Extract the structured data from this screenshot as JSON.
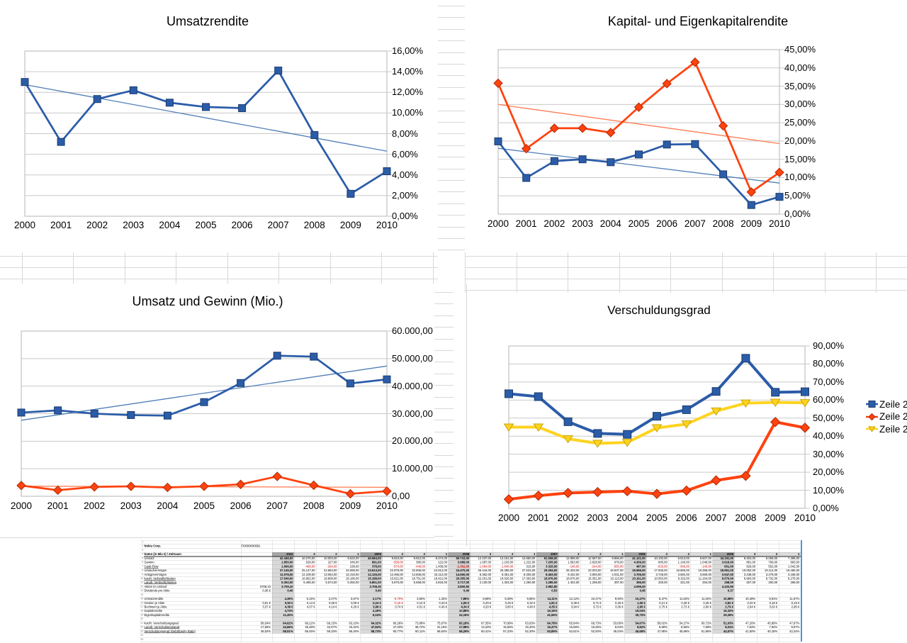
{
  "years": [
    "2000",
    "2001",
    "2002",
    "2003",
    "2004",
    "2005",
    "2006",
    "2007",
    "2008",
    "2009",
    "2010"
  ],
  "chart_data": [
    {
      "type": "line",
      "title": "Umsatzrendite",
      "xlabel": "",
      "ylabel": "",
      "ylim": [
        0,
        16
      ],
      "grid": true,
      "y_ticks": [
        "16,00%",
        "14,00%",
        "12,00%",
        "10,00%",
        "8,00%",
        "6,00%",
        "4,00%",
        "2,00%",
        "0,00%"
      ],
      "series": [
        {
          "name": "Umsatzrendite",
          "values": [
            13.0,
            7.2,
            11.35,
            12.2,
            11.0,
            10.58,
            10.47,
            14.11,
            7.86,
            2.17,
            4.36
          ],
          "trend": {
            "from": 12.75,
            "to": 6.3
          }
        }
      ]
    },
    {
      "type": "line",
      "title": "Kapital- und Eigenkapitalrendite",
      "xlabel": "",
      "ylabel": "",
      "ylim": [
        0,
        45
      ],
      "grid": true,
      "y_ticks": [
        "45,00%",
        "40,00%",
        "35,00%",
        "30,00%",
        "25,00%",
        "20,00%",
        "15,00%",
        "10,00%",
        "5,00%",
        "0,00%"
      ],
      "series": [
        {
          "name": "Eigenkapitalrendite",
          "values": [
            35.8,
            17.9,
            23.5,
            23.5,
            22.3,
            29.26,
            35.7,
            41.56,
            24.16,
            6.04,
            11.4
          ],
          "trend": {
            "from": 30.0,
            "to": 19.3
          }
        },
        {
          "name": "Kapitalrendite",
          "values": [
            19.9,
            9.9,
            14.5,
            15.0,
            14.2,
            16.32,
            19.04,
            19.16,
            10.88,
            2.49,
            4.73
          ],
          "trend": {
            "from": 18.0,
            "to": 8.5
          }
        }
      ]
    },
    {
      "type": "line",
      "title": "Umsatz und Gewinn (Mio.)",
      "xlabel": "",
      "ylabel": "",
      "ylim": [
        0,
        60000
      ],
      "grid": true,
      "y_ticks": [
        "60.000,00",
        "50.000,00",
        "40.000,00",
        "30.000,00",
        "20.000,00",
        "10.000,00",
        "0,00"
      ],
      "series": [
        {
          "name": "Umsatz",
          "values": [
            30400,
            31200,
            30000,
            29500,
            29300,
            34191,
            41121,
            51058,
            50710,
            40984,
            42446
          ],
          "trend": {
            "from": 27600,
            "to": 47300
          }
        },
        {
          "name": "Gewinn",
          "values": [
            3900,
            2200,
            3400,
            3600,
            3200,
            3616,
            4306,
            7205,
            3988,
            891,
            1850
          ],
          "trend": {
            "from": 3650,
            "to": 3250
          }
        }
      ]
    },
    {
      "type": "line",
      "title": "Verschuldungsgrad",
      "xlabel": "",
      "ylabel": "",
      "ylim": [
        0,
        90
      ],
      "grid": true,
      "legend_position": "right",
      "legend": [
        "Zeile 2",
        "Zeile 2",
        "Zeile 2"
      ],
      "y_ticks": [
        "90,00%",
        "80,00%",
        "70,00%",
        "60,00%",
        "50,00%",
        "40,00%",
        "30,00%",
        "20,00%",
        "10,00%",
        "0,00%"
      ],
      "series": [
        {
          "name": "kurzfr. Verschuldungsgrad",
          "values": [
            63.5,
            61.9,
            48.0,
            41.5,
            41.0,
            51.03,
            54.67,
            64.78,
            83.18,
            64.32,
            64.62
          ]
        },
        {
          "name": "Langfr. Verschuldungsgrad",
          "values": [
            5.0,
            7.0,
            8.5,
            9.0,
            9.5,
            8.01,
            9.82,
            15.47,
            17.98,
            47.84,
            44.66
          ]
        },
        {
          "name": "Verschuldungsgrad (Debt/Equity Ratio)",
          "values": [
            45.0,
            45.0,
            38.5,
            36.0,
            36.5,
            44.57,
            46.68,
            53.89,
            58.29,
            58.73,
            58.51
          ]
        }
      ]
    }
  ],
  "colors": {
    "blue": "#2B5CA8",
    "blue_border": "#1B3C6E",
    "blue_trend": "#4F7DB8",
    "orange": "#FF420E",
    "orange_border": "#AE2B07",
    "orange_trend": "#FF7B52",
    "yellow": "#FFD320",
    "yellow_border": "#C9A50A",
    "table_selection_border": "#4E95D9",
    "year_header_bg": "#A6A6A6",
    "year_col_bg": "#D9D9D9",
    "quarter_header_bg": "#DCDCDC",
    "negative_value": "#CC0000"
  },
  "table": {
    "headers": [
      "2010",
      "3",
      "2",
      "1",
      "2009",
      "3",
      "2",
      "1",
      "2008",
      "3",
      "2",
      "1",
      "2007",
      "3",
      "2",
      "1",
      "2006",
      "3",
      "2",
      "1",
      "2005",
      "3",
      "2",
      "1"
    ],
    "rows": [
      {},
      {
        "label": "Nokia Corp.",
        "bold": true,
        "b": "FI0009000681",
        "bAlign": "left"
      },
      {},
      {
        "label": "Daten (in Mio €) / Zeitraum",
        "bold": true,
        "header": true
      },
      {
        "label": "Umsatz",
        "cells": [
          "42.446,00",
          "10.270,00",
          "10.003,00",
          "9.522,00",
          "40.984,00",
          "9.810,00",
          "9.912,00",
          "9.274,00",
          "50.710,00",
          "12.237,00",
          "13.151,00",
          "12.660,00",
          "51.058,00",
          "12.898,00",
          "12.587,00",
          "9.856,00",
          "41.121,00",
          "10.100,00",
          "9.813,00",
          "9.507,00",
          "34.191,00",
          "8.403,00",
          "8.059,00",
          "7.396,00"
        ]
      },
      {
        "label": "Gewinn",
        "cells": [
          "1.850,00",
          "529,00",
          "227,00",
          "349,00",
          "891,00",
          "-559,00",
          "380,00",
          "122,00",
          "3.988,00",
          "1.087,00",
          "1.103,00",
          "1.222,00",
          "7.205,00",
          "1.563,00",
          "2.828,00",
          "979,00",
          "4.306,00",
          "845,00",
          "1.140,00",
          "1.048,00",
          "3.616,00",
          "881,00",
          "799,00",
          "863,00"
        ]
      },
      {
        "label": "Cash-Flow",
        "u": true,
        "cells": [
          "1.666,00",
          "-469,00",
          "-294,00",
          "238,00",
          "378,00",
          "-574,00",
          "-448,00",
          "1.436,00",
          "-1.302,00",
          "-1.084,00",
          "-1.640,00",
          "315,00",
          "3.325,00",
          "-146,00",
          "-244,00",
          "-550,00",
          "487,00",
          "-633,00",
          "-306,00",
          "-140,00",
          "601,00",
          "829,00",
          "552,00",
          "1.042,00"
        ]
      },
      {
        "label": "Umlaufvermögen",
        "cells": [
          "27.145,00",
          "25.147,00",
          "24.663,00",
          "24.068,00",
          "23.613,00",
          "22.879,00",
          "22.606,00",
          "24.512,00",
          "24.470,00",
          "26.416,00",
          "25.398,00",
          "27.533,00",
          "29.294,00",
          "25.329,00",
          "23.003,00",
          "18.637,00",
          "18.586,00",
          "17.948,00",
          "16.865,00",
          "18.386,00",
          "18.951,00",
          "19.052,00",
          "19.114,00",
          "19.455,00"
        ]
      },
      {
        "label": "Anlagevermögen",
        "cells": [
          "11.978,00",
          "12.109,00",
          "13.064,00",
          "12.419,00",
          "12.125,00",
          "12.495,00",
          "14.606,00",
          "15.112,00",
          "14.660,00",
          "8.362,00",
          "8.351,00",
          "8.305,00",
          "8.453,00",
          "8.432,00",
          "3.993,00",
          "4.031,00",
          "3.706,00",
          "3.748,00",
          "3.692,00",
          "3.669,00",
          "3.947,00",
          "3.238,00",
          "3.276,00",
          "3.186,00"
        ]
      },
      {
        "label": "kurzfr. Verbindlichkeiten",
        "u": true,
        "cells": [
          "17.540,00",
          "16.652,00",
          "16.808,00",
          "15.186,00",
          "15.188,00",
          "15.621,00",
          "16.751,00",
          "18.421,00",
          "20.355,00",
          "22.201,00",
          "18.026,00",
          "17.363,00",
          "18.976,00",
          "18.676,00",
          "15.351,00",
          "10.113,00",
          "10.161,00",
          "10.053,00",
          "9.152,00",
          "11.164,00",
          "9.570,00",
          "8.993,00",
          "8.732,00",
          "9.275,00"
        ]
      },
      {
        "label": "Langfr. Verbindlichkeiten",
        "u": true,
        "cells": [
          "5.352,00",
          "5.495,00",
          "5.574,00",
          "5.392,00",
          "5.801,00",
          "5.870,00",
          "5.658,00",
          "4.818,00",
          "3.717,00",
          "2.130,00",
          "1.303,00",
          "1.269,00",
          "1.285,00",
          "1.402,00",
          "1.296,00",
          "397,00",
          "396,00",
          "329,00",
          "321,00",
          "284,00",
          "268,00",
          "257,00",
          "260,00",
          "269,00"
        ]
      },
      {
        "label": "Aktien im Umlauf",
        "b": "3709,10",
        "cells": [
          "3.709,10",
          "",
          "",
          "",
          "3.708,30",
          "",
          "",
          "",
          "3.800,90",
          "",
          "",
          "",
          "3.982,80",
          "",
          "",
          "",
          "4.095,00",
          "",
          "",
          "",
          "4.433,90",
          "",
          "",
          ""
        ]
      },
      {
        "label": "Dividende pro Aktie",
        "b": "0,36 €",
        "cells": [
          "0,40",
          "",
          "",
          "",
          "0,40",
          "",
          "",
          "",
          "0,40",
          "",
          "",
          "",
          "0,53",
          "",
          "",
          "",
          "0,45",
          "",
          "",
          "",
          "0,37",
          "",
          "",
          ""
        ]
      },
      {},
      {
        "label": "Umsatzrendite",
        "cells": [
          "4,36%",
          "5,15%",
          "2,27%",
          "3,67%",
          "2,17%",
          "-5,70%",
          "3,83%",
          "1,32%",
          "7,86%",
          "8,88%",
          "8,39%",
          "9,65%",
          "14,11%",
          "12,12%",
          "22,47%",
          "9,93%",
          "10,47%",
          "8,37%",
          "11,62%",
          "11,02%",
          "10,58%",
          "10,48%",
          "9,91%",
          "11,67%"
        ]
      },
      {
        "label": "Gewinn je Aktie",
        "b": "0,81 €",
        "cells": [
          "0,50 €",
          "0,14 €",
          "0,06 €",
          "0,09 €",
          "0,24 €",
          "-0,15 €",
          "0,10 €",
          "0,33 €",
          "1,06 €",
          "0,29 €",
          "0,29 €",
          "0,32 €",
          "1,81 €",
          "0,39 €",
          "0,71 €",
          "0,25 €",
          "1,06 €",
          "0,21 €",
          "0,28 €",
          "0,26 €",
          "0,82 €",
          "0,20 €",
          "0,18 €",
          "0,19 €"
        ]
      },
      {
        "label": "Buchwert je Aktie",
        "b": "3,37 €",
        "cells": [
          "4,38 €",
          "4,07 €",
          "4,14 €",
          "4,29 €",
          "3,98 €",
          "3,74 €",
          "4,01 €",
          "4,46 €",
          "4,34 €",
          "4,20 €",
          "3,80 €",
          "4,48 €",
          "4,35 €",
          "3,94 €",
          "3,72 €",
          "3,09 €",
          "2,95 €",
          "2,75 €",
          "2,72 €",
          "2,60 €",
          "2,79 €",
          "2,94 €",
          "3,02 €",
          "2,95 €"
        ]
      },
      {
        "label": "Kapitalrendite",
        "cells": [
          "4,73%",
          "",
          "",
          "",
          "2,49%",
          "",
          "",
          "",
          "10,88%",
          "",
          "",
          "",
          "19,16%",
          "",
          "",
          "",
          "19,04%",
          "",
          "",
          "",
          "16,32%",
          "",
          "",
          ""
        ]
      },
      {
        "label": "Eigenkapitalrendite",
        "cells": [
          "11,40%",
          "",
          "",
          "",
          "6,04%",
          "",
          "",
          "",
          "24,16%",
          "",
          "",
          "",
          "41,56%",
          "",
          "",
          "",
          "35,70%",
          "",
          "",
          "",
          "29,26%",
          "",
          "",
          ""
        ]
      },
      {},
      {
        "label": "kurzfr. Verschuldungsgrad",
        "b": "58,54%",
        "cells": [
          "64,62%",
          "66,22%",
          "66,15%",
          "63,10%",
          "64,32%",
          "66,28%",
          "73,89%",
          "75,97%",
          "83,18%",
          "67,35%",
          "70,98%",
          "63,63%",
          "64,78%",
          "65,84%",
          "66,73%",
          "53,69%",
          "54,67%",
          "56,02%",
          "54,27%",
          "60,72%",
          "51,03%",
          "47,20%",
          "45,68%",
          "47,67%"
        ]
      },
      {
        "label": "Langfr. Verschuldungsgrad",
        "u": true,
        "b": "17,55%",
        "cells": [
          "44,66%",
          "45,38%",
          "42,67%",
          "43,42%",
          "47,84%",
          "47,03%",
          "38,72%",
          "31,16%",
          "17,98%",
          "14,33%",
          "15,55%",
          "15,20%",
          "15,47%",
          "16,56%",
          "15,25%",
          "9,94%",
          "9,82%",
          "8,88%",
          "8,56%",
          "7,69%",
          "8,01%",
          "7,94%",
          "7,94%",
          "9,07%"
        ]
      },
      {
        "label": "Verschuldungsgrad (Debt/Equity Ratio)",
        "u": true,
        "b": "48,52%",
        "cells": [
          "58,51%",
          "59,45%",
          "59,33%",
          "56,40%",
          "58,73%",
          "60,77%",
          "60,11%",
          "58,64%",
          "58,29%",
          "60,41%",
          "57,23%",
          "52,30%",
          "53,89%",
          "53,51%",
          "52,93%",
          "46,04%",
          "46,68%",
          "47,95%",
          "45,96%",
          "51,85%",
          "44,57%",
          "41,50%",
          "40,16%",
          "42,24%"
        ]
      },
      {},
      {}
    ]
  }
}
